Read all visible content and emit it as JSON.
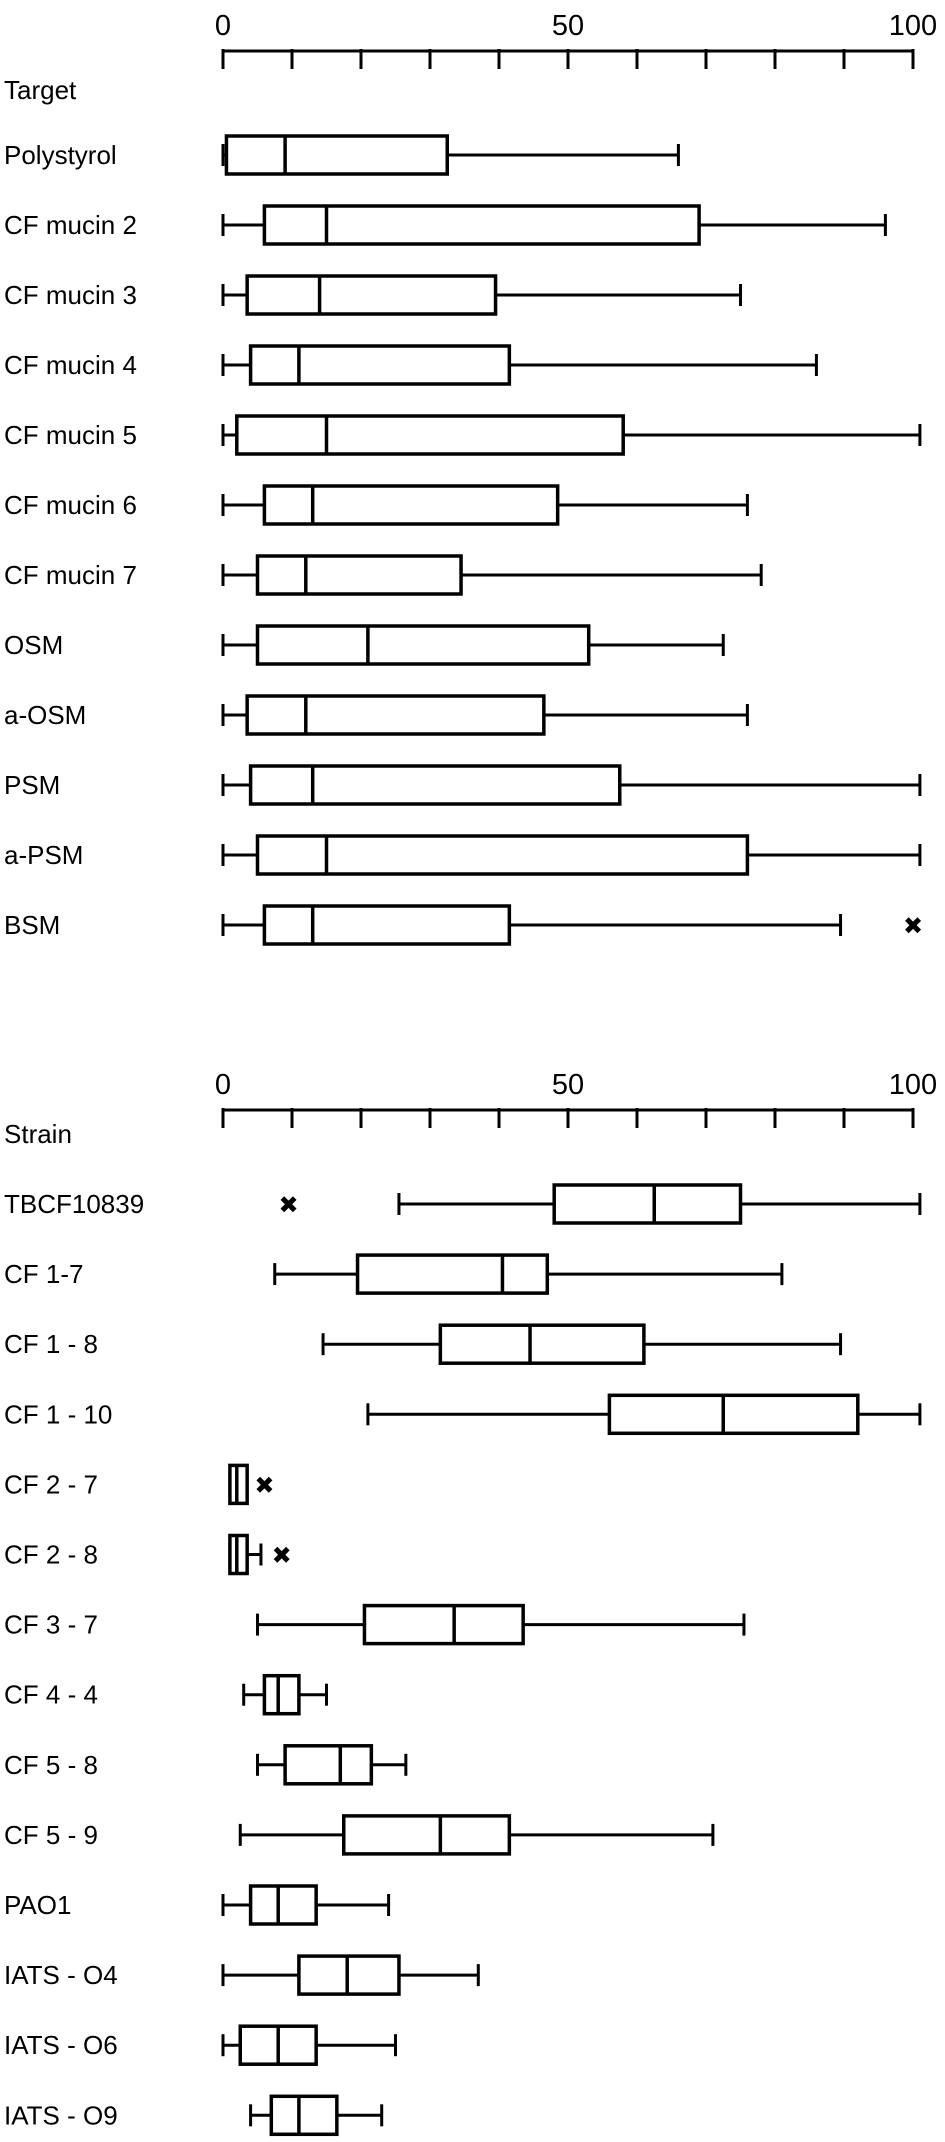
{
  "chart_data": [
    {
      "type": "boxplot",
      "category_header": "Target",
      "xlim": [
        0,
        100
      ],
      "x_tick_labels": [
        {
          "value": 0,
          "label": "0"
        },
        {
          "value": 50,
          "label": "50"
        },
        {
          "value": 100,
          "label": "100"
        }
      ],
      "minor_tick_step": 10,
      "grid": false,
      "outlier_marker": "✖",
      "rows": [
        {
          "label": "Polystyrol",
          "min": 0,
          "q1": 0.5,
          "median": 9,
          "q3": 32.5,
          "max": 66,
          "outliers": []
        },
        {
          "label": "CF mucin 2",
          "min": 0,
          "q1": 6,
          "median": 15,
          "q3": 69,
          "max": 96,
          "outliers": []
        },
        {
          "label": "CF mucin 3",
          "min": 0,
          "q1": 3.5,
          "median": 14,
          "q3": 39.5,
          "max": 75,
          "outliers": []
        },
        {
          "label": "CF mucin 4",
          "min": 0,
          "q1": 4,
          "median": 11,
          "q3": 41.5,
          "max": 86,
          "outliers": []
        },
        {
          "label": "CF mucin 5",
          "min": 0,
          "q1": 2,
          "median": 15,
          "q3": 58,
          "max": 101,
          "outliers": []
        },
        {
          "label": "CF mucin 6",
          "min": 0,
          "q1": 6,
          "median": 13,
          "q3": 48.5,
          "max": 76,
          "outliers": []
        },
        {
          "label": "CF mucin 7",
          "min": 0,
          "q1": 5,
          "median": 12,
          "q3": 34.5,
          "max": 78,
          "outliers": []
        },
        {
          "label": "OSM",
          "min": 0,
          "q1": 5,
          "median": 21,
          "q3": 53,
          "max": 72.5,
          "outliers": []
        },
        {
          "label": "a-OSM",
          "min": 0,
          "q1": 3.5,
          "median": 12,
          "q3": 46.5,
          "max": 76,
          "outliers": []
        },
        {
          "label": "PSM",
          "min": 0,
          "q1": 4,
          "median": 13,
          "q3": 57.5,
          "max": 101,
          "outliers": []
        },
        {
          "label": "a-PSM",
          "min": 0,
          "q1": 5,
          "median": 15,
          "q3": 76,
          "max": 101,
          "outliers": []
        },
        {
          "label": "BSM",
          "min": 0,
          "q1": 6,
          "median": 13,
          "q3": 41.5,
          "max": 89.5,
          "outliers": [
            100
          ]
        }
      ]
    },
    {
      "type": "boxplot",
      "category_header": "Strain",
      "xlim": [
        0,
        100
      ],
      "x_tick_labels": [
        {
          "value": 0,
          "label": "0"
        },
        {
          "value": 50,
          "label": "50"
        },
        {
          "value": 100,
          "label": "100"
        }
      ],
      "minor_tick_step": 10,
      "grid": false,
      "outlier_marker": "✖",
      "rows": [
        {
          "label": "TBCF10839",
          "min": 25.5,
          "q1": 48,
          "median": 62.5,
          "q3": 75,
          "max": 101,
          "outliers": [
            9.5
          ]
        },
        {
          "label": "CF 1-7",
          "min": 7.5,
          "q1": 19.5,
          "median": 40.5,
          "q3": 47,
          "max": 81,
          "outliers": []
        },
        {
          "label": "CF 1 - 8",
          "min": 14.5,
          "q1": 31.5,
          "median": 44.5,
          "q3": 61,
          "max": 89.5,
          "outliers": []
        },
        {
          "label": "CF 1 - 10",
          "min": 21,
          "q1": 56,
          "median": 72.5,
          "q3": 92,
          "max": 101,
          "outliers": []
        },
        {
          "label": "CF 2 - 7",
          "min": 1,
          "q1": 1,
          "median": 2,
          "q3": 3.5,
          "max": 3.5,
          "outliers": [
            6
          ]
        },
        {
          "label": "CF 2 - 8",
          "min": 1,
          "q1": 1,
          "median": 2,
          "q3": 3.5,
          "max": 5.5,
          "outliers": [
            8.5
          ]
        },
        {
          "label": "CF 3 - 7",
          "min": 5,
          "q1": 20.5,
          "median": 33.5,
          "q3": 43.5,
          "max": 75.5,
          "outliers": []
        },
        {
          "label": "CF 4 - 4",
          "min": 3,
          "q1": 6,
          "median": 8,
          "q3": 11,
          "max": 15,
          "outliers": []
        },
        {
          "label": "CF 5 - 8",
          "min": 5,
          "q1": 9,
          "median": 17,
          "q3": 21.5,
          "max": 26.5,
          "outliers": []
        },
        {
          "label": "CF 5 - 9",
          "min": 2.5,
          "q1": 17.5,
          "median": 31.5,
          "q3": 41.5,
          "max": 71,
          "outliers": []
        },
        {
          "label": "PAO1",
          "min": 0,
          "q1": 4,
          "median": 8,
          "q3": 13.5,
          "max": 24,
          "outliers": []
        },
        {
          "label": "IATS - O4",
          "min": 0,
          "q1": 11,
          "median": 18,
          "q3": 25.5,
          "max": 37,
          "outliers": []
        },
        {
          "label": "IATS - O6",
          "min": 0,
          "q1": 2.5,
          "median": 8,
          "q3": 13.5,
          "max": 25,
          "outliers": []
        },
        {
          "label": "IATS - O9",
          "min": 4,
          "q1": 7,
          "median": 11,
          "q3": 16.5,
          "max": 23,
          "outliers": []
        }
      ]
    }
  ]
}
